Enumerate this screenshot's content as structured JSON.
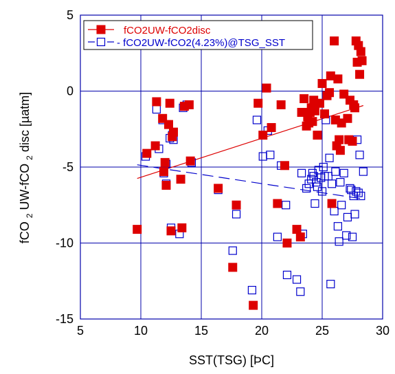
{
  "chart_data": {
    "type": "scatter",
    "title": "",
    "xlabel": "SST(TSG) [ÞC]",
    "ylabel_main": "fCO",
    "ylabel_sub1": "2",
    "ylabel_mid": "UW-fCO",
    "ylabel_sub2": "2",
    "ylabel_end": "disc [µatm]",
    "xlim": [
      5,
      30
    ],
    "ylim": [
      -15,
      5
    ],
    "xticks": [
      "5",
      "10",
      "15",
      "20",
      "25",
      "30"
    ],
    "yticks": [
      "-15",
      "-10",
      "-5",
      "0",
      "5"
    ],
    "grid": true,
    "legend_position": "top-left",
    "colors": {
      "series1": "#dd0000",
      "series2": "#0000cc",
      "axis": "#0000aa",
      "grid": "#0000aa"
    },
    "series": [
      {
        "name": "fCO2UW-fCO2disc",
        "marker": "filled-square",
        "color": "#dd0000",
        "points": [
          [
            9.7,
            -9.1
          ],
          [
            10.5,
            -4.1
          ],
          [
            11.2,
            -3.6
          ],
          [
            11.3,
            -0.7
          ],
          [
            11.8,
            -1.8
          ],
          [
            11.9,
            -5.3
          ],
          [
            12.0,
            -4.7
          ],
          [
            12.1,
            -6.2
          ],
          [
            12.3,
            -2.2
          ],
          [
            12.4,
            -0.8
          ],
          [
            12.5,
            -9.2
          ],
          [
            12.6,
            -3.0
          ],
          [
            12.7,
            -2.7
          ],
          [
            13.3,
            -5.8
          ],
          [
            13.4,
            -9.0
          ],
          [
            13.6,
            -1.0
          ],
          [
            14.0,
            -0.9
          ],
          [
            14.1,
            -4.6
          ],
          [
            16.4,
            -6.4
          ],
          [
            17.6,
            -11.6
          ],
          [
            17.9,
            -7.5
          ],
          [
            19.3,
            -14.1
          ],
          [
            19.7,
            -0.8
          ],
          [
            20.1,
            -2.9
          ],
          [
            20.4,
            0.2
          ],
          [
            20.8,
            -2.4
          ],
          [
            21.3,
            -7.4
          ],
          [
            21.6,
            -0.9
          ],
          [
            21.9,
            -4.9
          ],
          [
            22.1,
            -10.0
          ],
          [
            22.9,
            -9.1
          ],
          [
            23.2,
            -9.6
          ],
          [
            23.3,
            -1.4
          ],
          [
            23.5,
            -0.5
          ],
          [
            23.8,
            -1.7
          ],
          [
            23.9,
            -2.1
          ],
          [
            24.1,
            -1.1
          ],
          [
            24.2,
            -2.0
          ],
          [
            24.3,
            -0.6
          ],
          [
            24.4,
            -1.3
          ],
          [
            24.6,
            -2.9
          ],
          [
            24.8,
            -0.8
          ],
          [
            25.0,
            0.5
          ],
          [
            25.2,
            -1.5
          ],
          [
            25.4,
            -0.3
          ],
          [
            25.6,
            -0.1
          ],
          [
            25.7,
            1.0
          ],
          [
            25.8,
            -7.4
          ],
          [
            26.0,
            3.3
          ],
          [
            26.1,
            -1.9
          ],
          [
            26.3,
            0.8
          ],
          [
            26.4,
            -3.2
          ],
          [
            26.5,
            -3.9
          ],
          [
            26.6,
            -2.1
          ],
          [
            26.8,
            -0.2
          ],
          [
            27.1,
            -1.8
          ],
          [
            27.2,
            -3.2
          ],
          [
            27.3,
            -0.6
          ],
          [
            27.5,
            -3.3
          ],
          [
            27.7,
            -1.1
          ],
          [
            27.8,
            3.3
          ],
          [
            27.9,
            1.9
          ],
          [
            28.0,
            3.0
          ],
          [
            28.1,
            1.1
          ],
          [
            28.2,
            2.6
          ],
          [
            28.3,
            2.0
          ],
          [
            27.6,
            -0.9
          ],
          [
            24.0,
            -1.4
          ],
          [
            26.2,
            -3.6
          ],
          [
            23.7,
            -2.3
          ]
        ]
      },
      {
        "name": "- fCO2UW-fCO2(4.23%)@TSG_SST",
        "marker": "open-square",
        "color": "#0000cc",
        "points": [
          [
            9.7,
            -9.1
          ],
          [
            10.4,
            -4.3
          ],
          [
            11.3,
            -1.2
          ],
          [
            11.5,
            -3.8
          ],
          [
            11.8,
            -1.9
          ],
          [
            11.9,
            -5.4
          ],
          [
            12.1,
            -4.8
          ],
          [
            12.1,
            -6.1
          ],
          [
            12.4,
            -3.1
          ],
          [
            12.5,
            -9.0
          ],
          [
            12.6,
            -2.9
          ],
          [
            12.7,
            -3.2
          ],
          [
            13.2,
            -9.4
          ],
          [
            13.5,
            -1.1
          ],
          [
            13.8,
            -0.9
          ],
          [
            14.2,
            -4.7
          ],
          [
            16.4,
            -6.5
          ],
          [
            17.6,
            -10.5
          ],
          [
            17.9,
            -8.1
          ],
          [
            19.2,
            -13.1
          ],
          [
            19.6,
            -1.9
          ],
          [
            20.1,
            -4.3
          ],
          [
            20.5,
            -2.6
          ],
          [
            20.7,
            -4.2
          ],
          [
            21.3,
            -9.6
          ],
          [
            21.6,
            -4.9
          ],
          [
            22.0,
            -7.5
          ],
          [
            22.1,
            -12.1
          ],
          [
            22.9,
            -12.4
          ],
          [
            23.2,
            -13.2
          ],
          [
            23.3,
            -5.4
          ],
          [
            23.4,
            -9.4
          ],
          [
            23.7,
            -6.4
          ],
          [
            23.9,
            -6.1
          ],
          [
            24.1,
            -5.8
          ],
          [
            24.2,
            -5.4
          ],
          [
            24.3,
            -5.6
          ],
          [
            24.4,
            -7.4
          ],
          [
            24.5,
            -6.0
          ],
          [
            24.7,
            -5.2
          ],
          [
            24.9,
            -5.7
          ],
          [
            25.0,
            -6.6
          ],
          [
            25.1,
            -5.0
          ],
          [
            25.3,
            -1.9
          ],
          [
            25.5,
            -5.6
          ],
          [
            25.6,
            -4.4
          ],
          [
            25.7,
            -12.7
          ],
          [
            25.8,
            -6.1
          ],
          [
            26.0,
            -7.9
          ],
          [
            26.1,
            -5.3
          ],
          [
            26.3,
            -8.9
          ],
          [
            26.4,
            -9.9
          ],
          [
            26.5,
            -6.0
          ],
          [
            26.6,
            -7.5
          ],
          [
            26.8,
            -5.4
          ],
          [
            27.0,
            -9.5
          ],
          [
            27.1,
            -8.3
          ],
          [
            27.3,
            -6.4
          ],
          [
            27.5,
            -9.6
          ],
          [
            27.6,
            -6.9
          ],
          [
            27.7,
            -8.1
          ],
          [
            27.8,
            -6.6
          ],
          [
            27.9,
            -3.2
          ],
          [
            28.0,
            -6.7
          ],
          [
            28.1,
            -4.2
          ],
          [
            28.2,
            -6.9
          ],
          [
            28.4,
            -5.3
          ],
          [
            27.4,
            -6.5
          ],
          [
            24.6,
            -6.3
          ],
          [
            25.2,
            -5.6
          ]
        ]
      }
    ],
    "fit_lines": [
      {
        "series": "fCO2UW-fCO2disc",
        "style": "solid",
        "x": [
          9.7,
          28.4
        ],
        "y": [
          -5.75,
          -0.95
        ]
      },
      {
        "series": "- fCO2UW-fCO2(4.23%)@TSG_SST",
        "style": "dashed",
        "x": [
          9.7,
          28.4
        ],
        "y": [
          -4.85,
          -7.1
        ]
      }
    ]
  }
}
